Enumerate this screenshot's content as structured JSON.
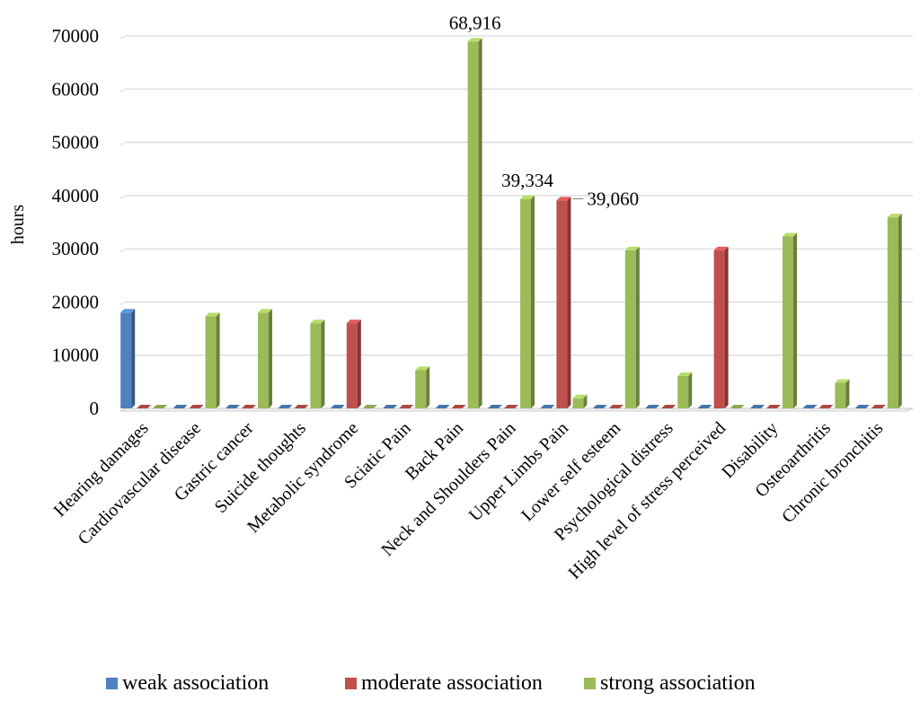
{
  "chart_data": {
    "type": "bar",
    "title": "",
    "xlabel": "",
    "ylabel": "hours",
    "ylim": [
      0,
      70000
    ],
    "yticks": [
      0,
      10000,
      20000,
      30000,
      40000,
      50000,
      60000,
      70000
    ],
    "grid": true,
    "legend_position": "bottom",
    "categories": [
      "Hearing damages",
      "Cardiovascular disease",
      "Gastric cancer",
      "Suicide thoughts",
      "Metabolic syndrome",
      "Sciatic Pain",
      "Back Pain",
      "Neck and Shoulders Pain",
      "Upper Limbs Pain",
      "Lower self esteem",
      "Psychological distress",
      "High level of stress perceived",
      "Disability",
      "Osteoarthritis",
      "Chronic bronchitis"
    ],
    "series": [
      {
        "name": "weak association",
        "color": "#4f81bd",
        "values": [
          18000,
          0,
          0,
          0,
          0,
          0,
          0,
          0,
          0,
          0,
          0,
          0,
          0,
          0,
          0
        ]
      },
      {
        "name": "moderate association",
        "color": "#c0504d",
        "values": [
          0,
          0,
          0,
          0,
          16000,
          0,
          0,
          0,
          39060,
          0,
          0,
          29700,
          0,
          0,
          0
        ]
      },
      {
        "name": "strong association",
        "color": "#9bbb59",
        "values": [
          0,
          17300,
          18000,
          16000,
          0,
          7200,
          68916,
          39334,
          1900,
          29700,
          6100,
          0,
          32300,
          4800,
          35900
        ]
      }
    ],
    "annotations": [
      {
        "text": "68,916",
        "category": "Back Pain",
        "series": "strong association"
      },
      {
        "text": "39,334",
        "category": "Neck and Shoulders Pain",
        "series": "strong association"
      },
      {
        "text": "39,060",
        "category": "Upper Limbs Pain",
        "series": "moderate association"
      }
    ]
  }
}
